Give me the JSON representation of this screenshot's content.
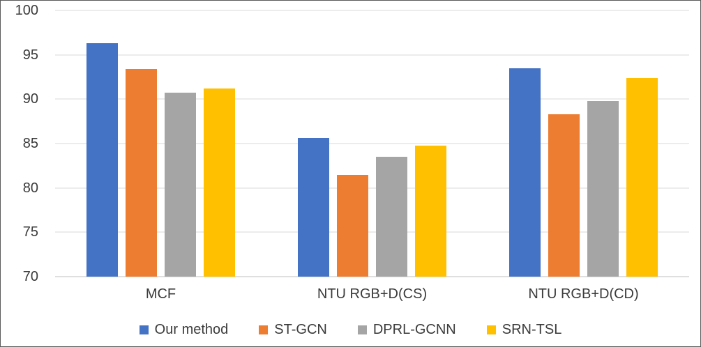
{
  "chart_data": {
    "type": "bar",
    "categories": [
      "MCF",
      "NTU RGB+D(CS)",
      "NTU RGB+D(CD)"
    ],
    "series": [
      {
        "name": "Our method",
        "color": "#4472C4",
        "values": [
          96.3,
          85.6,
          93.5
        ]
      },
      {
        "name": "ST-GCN",
        "color": "#ED7D31",
        "values": [
          93.4,
          81.5,
          88.3
        ]
      },
      {
        "name": "DPRL-GCNN",
        "color": "#A5A5A5",
        "values": [
          90.7,
          83.5,
          89.8
        ]
      },
      {
        "name": "SRN-TSL",
        "color": "#FFC000",
        "values": [
          91.2,
          84.8,
          92.4
        ]
      }
    ],
    "title": "",
    "xlabel": "",
    "ylabel": "",
    "ylim": [
      70,
      100
    ],
    "yticks": [
      70,
      75,
      80,
      85,
      90,
      95,
      100
    ],
    "grid": true,
    "legend_position": "bottom"
  }
}
